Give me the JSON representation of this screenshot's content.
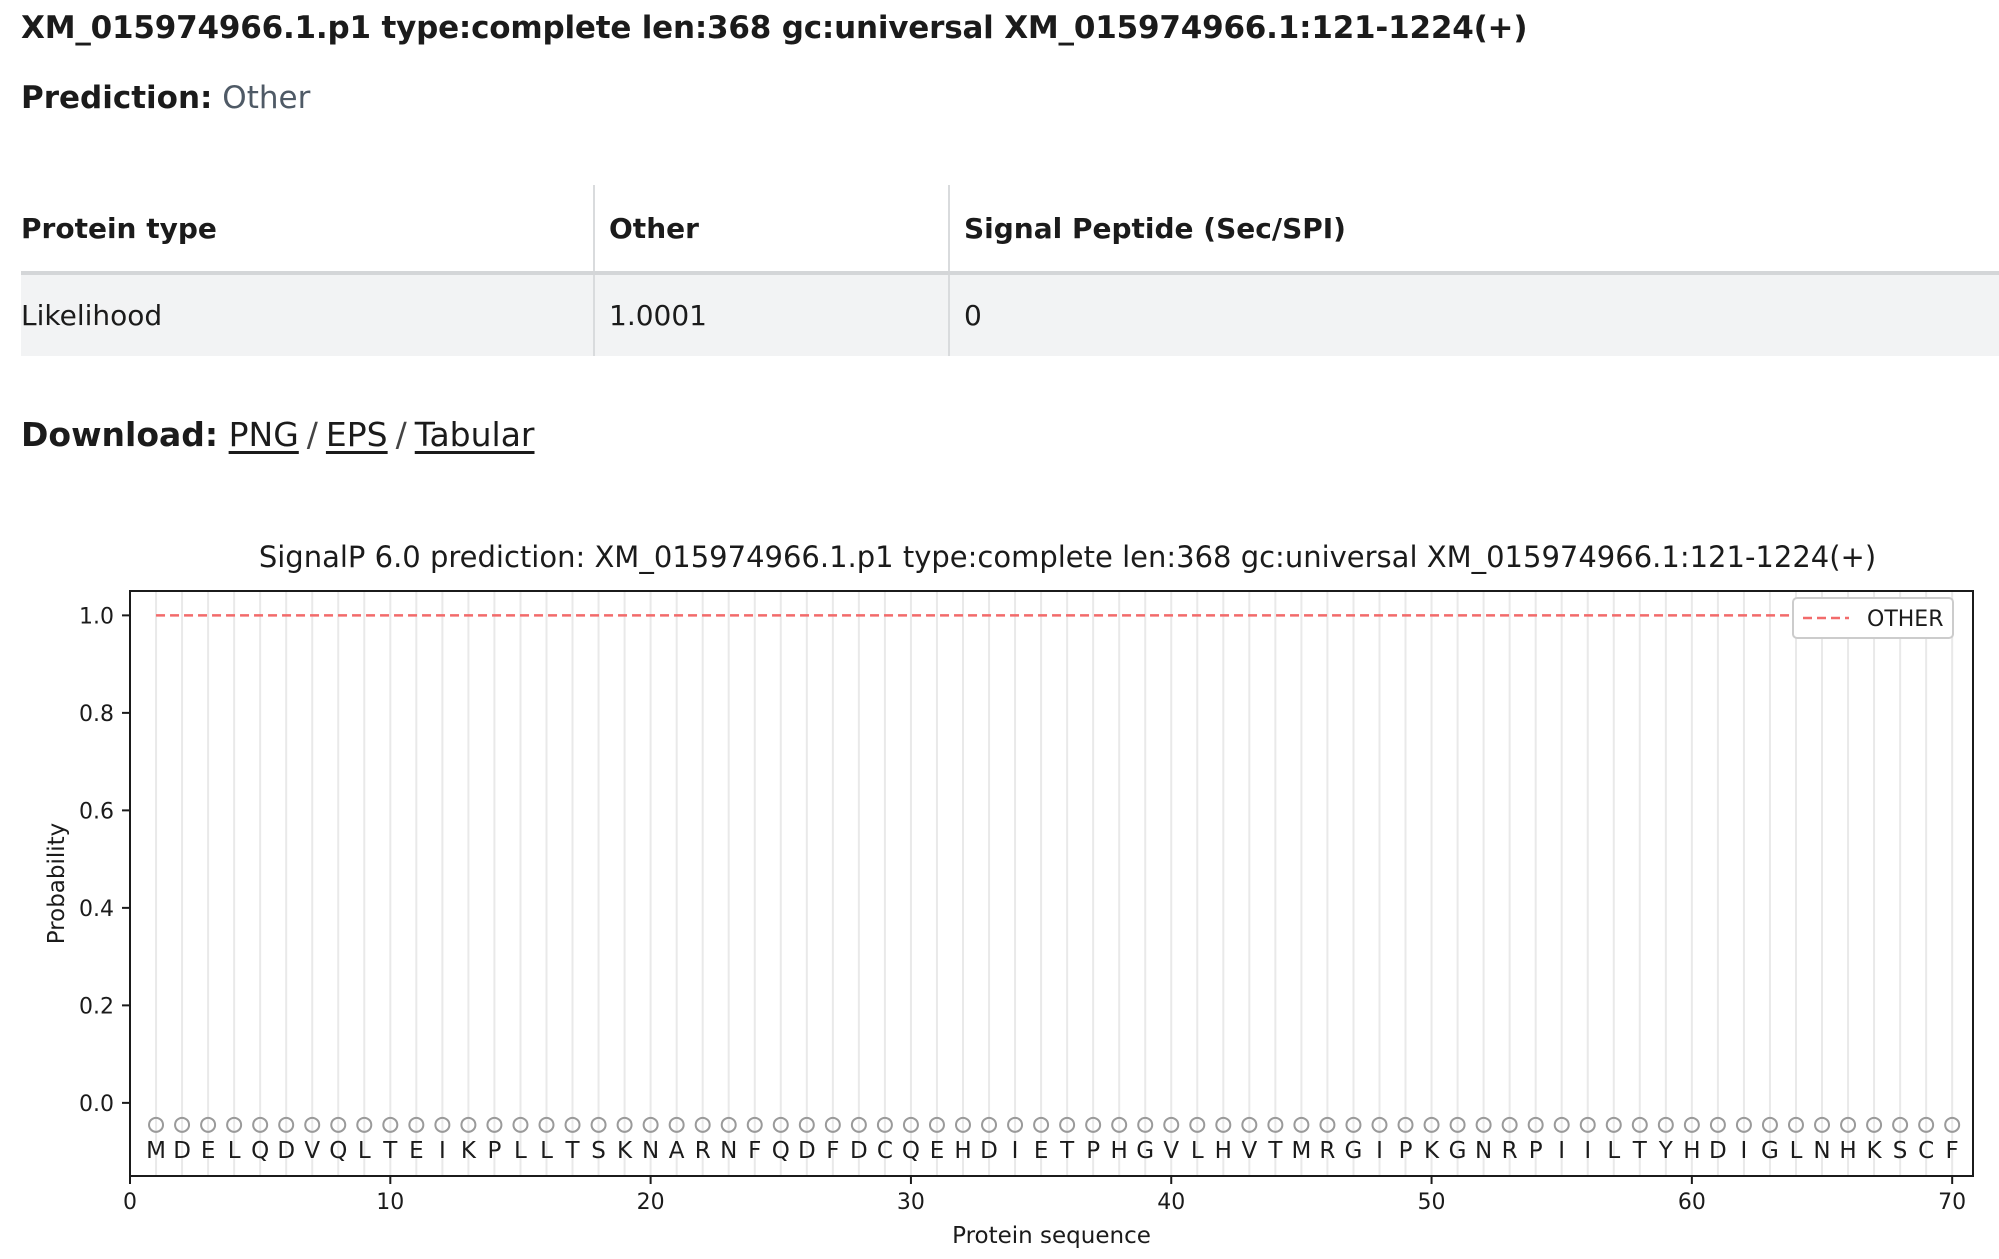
{
  "header": {
    "title": "XM_015974966.1.p1 type:complete len:368 gc:universal XM_015974966.1:121-1224(+)"
  },
  "prediction": {
    "label": "Prediction:",
    "value": "Other"
  },
  "table": {
    "headers": [
      "Protein type",
      "Other",
      "Signal Peptide (Sec/SPI)"
    ],
    "row": [
      "Likelihood",
      "1.0001",
      "0"
    ]
  },
  "download": {
    "label": "Download:",
    "links": [
      "PNG",
      "EPS",
      "Tabular"
    ],
    "separator": "/"
  },
  "chart_data": {
    "type": "line",
    "title": "SignalP 6.0 prediction: XM_015974966.1.p1 type:complete len:368 gc:universal XM_015974966.1:121-1224(+)",
    "xlabel": "Protein sequence",
    "ylabel": "Probability",
    "xlim": [
      0,
      70.8
    ],
    "ylim": [
      -0.15,
      1.05
    ],
    "xticks": [
      0,
      10,
      20,
      30,
      40,
      50,
      60,
      70
    ],
    "yticks": [
      "0.0",
      "0.2",
      "0.4",
      "0.6",
      "0.8",
      "1.0"
    ],
    "grid": "vertical at each residue",
    "legend_position": "top-right",
    "series": [
      {
        "name": "OTHER",
        "style": "dashed",
        "color": "#f26b6b",
        "x_start": 1,
        "x_end": 70,
        "value": 1.0
      }
    ],
    "residue_marker": "O",
    "residue_marker_value": -0.045,
    "residues": [
      "M",
      "D",
      "E",
      "L",
      "Q",
      "D",
      "V",
      "Q",
      "L",
      "T",
      "E",
      "I",
      "K",
      "P",
      "L",
      "L",
      "T",
      "S",
      "K",
      "N",
      "A",
      "R",
      "N",
      "F",
      "Q",
      "D",
      "F",
      "D",
      "C",
      "Q",
      "E",
      "H",
      "D",
      "I",
      "E",
      "T",
      "P",
      "H",
      "G",
      "V",
      "L",
      "H",
      "V",
      "T",
      "M",
      "R",
      "G",
      "I",
      "P",
      "K",
      "G",
      "N",
      "R",
      "P",
      "I",
      "I",
      "L",
      "T",
      "Y",
      "H",
      "D",
      "I",
      "G",
      "L",
      "N",
      "H",
      "K",
      "S",
      "C",
      "F"
    ],
    "colors": {
      "grid": "#e9e9e9",
      "marker": "#9a9a9a",
      "axes": "#1b1b1b"
    }
  }
}
